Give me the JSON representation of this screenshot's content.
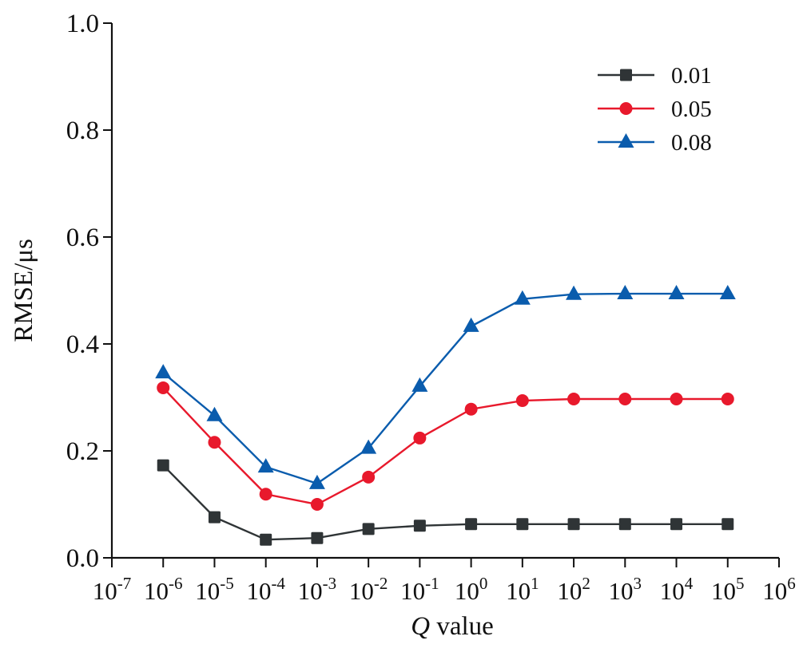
{
  "chart_data": {
    "type": "line",
    "title": "",
    "xlabel_italic": "Q",
    "xlabel_rest": " value",
    "ylabel": "RMSE/μs",
    "xscale": "log",
    "x_exponents_range": [
      -7,
      6
    ],
    "ylim": [
      0.0,
      1.0
    ],
    "yticks": [
      "0.0",
      "0.2",
      "0.4",
      "0.6",
      "0.8",
      "1.0"
    ],
    "ytick_values": [
      0.0,
      0.2,
      0.4,
      0.6,
      0.8,
      1.0
    ],
    "xtick_exponents": [
      "-7",
      "-6",
      "-5",
      "-4",
      "-3",
      "-2",
      "-1",
      "0",
      "1",
      "2",
      "3",
      "4",
      "5",
      "6"
    ],
    "xtick_base": "10",
    "grid": false,
    "legend_position": "top-right",
    "x_exponents": [
      -6,
      -5,
      -4,
      -3,
      -2,
      -1,
      0,
      1,
      2,
      3,
      4,
      5
    ],
    "series": [
      {
        "name": "0.01",
        "marker": "square",
        "color": "#2f3436",
        "values": [
          0.173,
          0.076,
          0.034,
          0.037,
          0.054,
          0.06,
          0.063,
          0.063,
          0.063,
          0.063,
          0.063,
          0.063
        ]
      },
      {
        "name": "0.05",
        "marker": "circle",
        "color": "#e8192c",
        "values": [
          0.318,
          0.216,
          0.119,
          0.1,
          0.151,
          0.224,
          0.278,
          0.294,
          0.297,
          0.297,
          0.297,
          0.297
        ]
      },
      {
        "name": "0.08",
        "marker": "triangle",
        "color": "#0a5cad",
        "values": [
          0.346,
          0.266,
          0.17,
          0.139,
          0.205,
          0.321,
          0.433,
          0.484,
          0.493,
          0.494,
          0.494,
          0.494
        ]
      }
    ]
  }
}
